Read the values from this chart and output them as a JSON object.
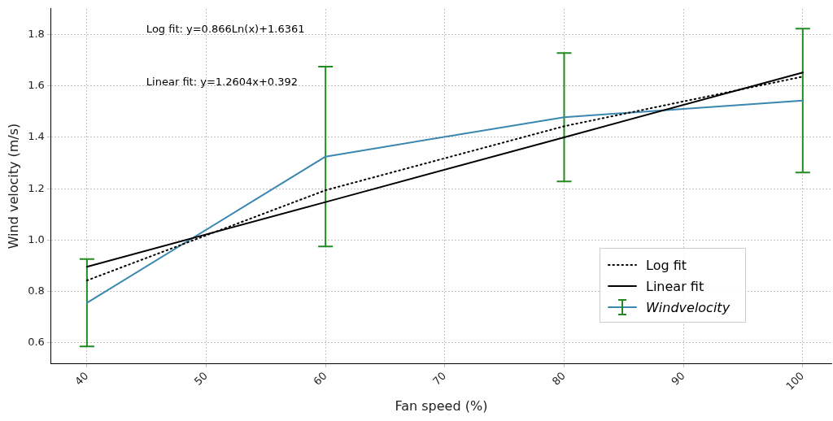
{
  "chart_data": {
    "type": "line",
    "xlabel": "Fan speed (%)",
    "ylabel": "Wind velocity (m/s)",
    "x": [
      40,
      60,
      80,
      100
    ],
    "series": [
      {
        "name": "Log fit",
        "color": "#000000",
        "line_style": "dotted",
        "values": [
          0.843,
          1.194,
          1.443,
          1.636
        ]
      },
      {
        "name": "Linear fit",
        "color": "#000000",
        "line_style": "solid",
        "values": [
          0.896,
          1.148,
          1.4,
          1.652
        ]
      },
      {
        "name": "Windvelocity",
        "color": "#3a87b0",
        "line_style": "solid",
        "values": [
          0.756,
          1.325,
          1.478,
          1.543
        ],
        "errors": [
          0.17,
          0.35,
          0.25,
          0.28
        ]
      }
    ],
    "annotations": [
      "Log fit: y=0.866Ln(x)+1.6361",
      "Linear fit: y=1.2604x+0.392"
    ],
    "xlim": [
      37,
      102.4
    ],
    "xticks": [
      40,
      50,
      60,
      70,
      80,
      90,
      100
    ],
    "ylim": [
      0.52,
      1.9
    ],
    "yticks": [
      0.6,
      0.8,
      {
        "value": 1,
        "label": "1.0"
      },
      1.2,
      1.4,
      1.6,
      1.8
    ],
    "grid": true,
    "legend": "bottom right",
    "marker": "none"
  }
}
